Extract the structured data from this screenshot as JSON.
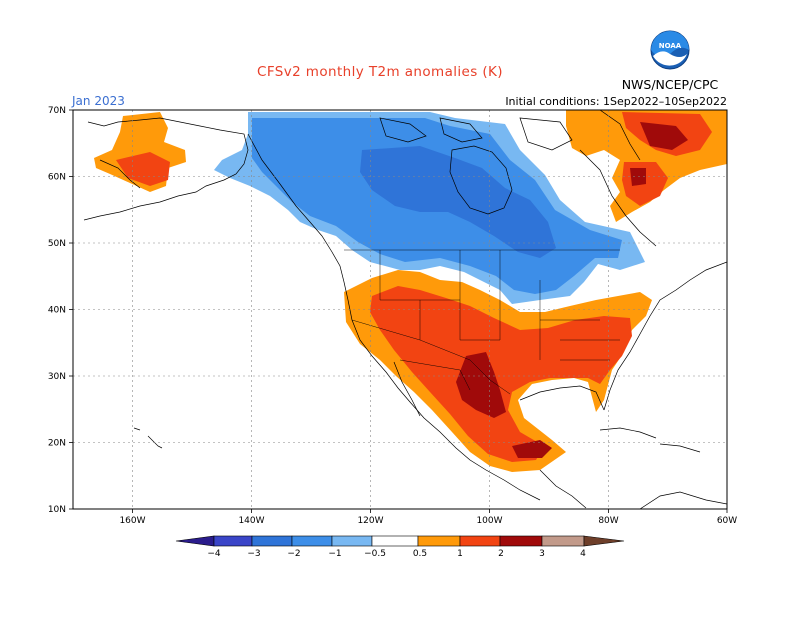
{
  "title": "CFSv2 monthly T2m anomalies (K)",
  "valid_month": "Jan 2023",
  "initial_conditions": "Initial conditions: 1Sep2022–10Sep2022",
  "agency": "NWS/NCEP/CPC",
  "logo": {
    "icon": "noaa-logo-icon",
    "text": "NOAA"
  },
  "map": {
    "lon_range": [
      -170,
      -60
    ],
    "lat_range": [
      10,
      70
    ],
    "lat_labels": [
      "10N",
      "20N",
      "30N",
      "40N",
      "50N",
      "60N",
      "70N"
    ],
    "lon_labels": [
      "160W",
      "140W",
      "120W",
      "100W",
      "80W",
      "60W"
    ],
    "gridlines": true
  },
  "colorbar": {
    "labels": [
      "−4",
      "−3",
      "−2",
      "−1",
      "−0.5",
      "0.5",
      "1",
      "2",
      "3",
      "4"
    ],
    "colors": {
      "lt_m4": "#2a1c8c",
      "m4_m3": "#3a45c8",
      "m3_m2": "#2f74d8",
      "m2_m1": "#3d8ee8",
      "m1_m05": "#78b8f2",
      "m05_05": "#ffffff",
      "p05_1": "#ff9a0a",
      "p1_2": "#f24412",
      "p2_3": "#a00a0a",
      "p3_4": "#c29a8a",
      "gt_4": "#6e3f2a"
    }
  }
}
